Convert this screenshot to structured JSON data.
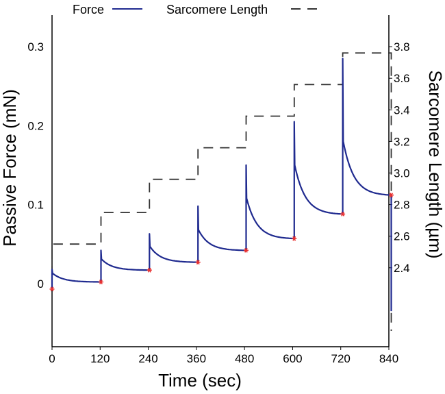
{
  "chart_data": {
    "type": "line",
    "title": "",
    "xlabel": "Time (sec)",
    "ylabel_left": "Passive Force (mN)",
    "ylabel_right": "Sarcomere Length (µm)",
    "xlim": [
      0,
      840
    ],
    "ylim_left": [
      -0.08,
      0.34
    ],
    "ylim_right": [
      1.9,
      4.0
    ],
    "x_ticks": [
      "0",
      "120",
      "240",
      "360",
      "480",
      "600",
      "720",
      "840"
    ],
    "y_left_ticks": [
      "0",
      "0.1",
      "0.2",
      "0.3"
    ],
    "y_right_ticks": [
      "2.4",
      "2.6",
      "2.8",
      "3.0",
      "3.2",
      "3.4",
      "3.6",
      "3.8"
    ],
    "legend": {
      "position": "top",
      "items": [
        "Force",
        "Sarcomere Length"
      ]
    },
    "colors": {
      "force": "#1f2a8f",
      "sarcomere": "#333333",
      "marker": "#e83030",
      "axis": "#000000"
    },
    "series": [
      {
        "name": "Force",
        "axis": "left",
        "steps": [
          {
            "t": 0,
            "pre": -0.007,
            "peak": 0.018,
            "hold_start": 0.013,
            "end": 0.002
          },
          {
            "t": 122,
            "pre": 0.002,
            "peak": 0.042,
            "hold_start": 0.031,
            "end": 0.017
          },
          {
            "t": 243,
            "pre": 0.017,
            "peak": 0.063,
            "hold_start": 0.047,
            "end": 0.027
          },
          {
            "t": 364,
            "pre": 0.027,
            "peak": 0.098,
            "hold_start": 0.068,
            "end": 0.042
          },
          {
            "t": 484,
            "pre": 0.042,
            "peak": 0.15,
            "hold_start": 0.108,
            "end": 0.057
          },
          {
            "t": 604,
            "pre": 0.057,
            "peak": 0.205,
            "hold_start": 0.15,
            "end": 0.088
          },
          {
            "t": 725,
            "pre": 0.088,
            "peak": 0.285,
            "hold_start": 0.18,
            "end": 0.112
          }
        ],
        "release": {
          "t": 846,
          "value": -0.035
        }
      },
      {
        "name": "Sarcomere Length",
        "axis": "right",
        "style": "dashed",
        "x": [
          0,
          0,
          122,
          122,
          243,
          243,
          364,
          364,
          484,
          484,
          604,
          604,
          725,
          725,
          846,
          846
        ],
        "y": [
          2.35,
          2.55,
          2.55,
          2.75,
          2.75,
          2.96,
          2.96,
          3.16,
          3.16,
          3.36,
          3.36,
          3.56,
          3.56,
          3.76,
          3.76,
          2.0
        ]
      }
    ],
    "markers": [
      {
        "x": 0,
        "y": -0.007
      },
      {
        "x": 122,
        "y": 0.002
      },
      {
        "x": 243,
        "y": 0.017
      },
      {
        "x": 364,
        "y": 0.027
      },
      {
        "x": 484,
        "y": 0.042
      },
      {
        "x": 604,
        "y": 0.057
      },
      {
        "x": 725,
        "y": 0.088
      },
      {
        "x": 846,
        "y": 0.112
      }
    ]
  }
}
